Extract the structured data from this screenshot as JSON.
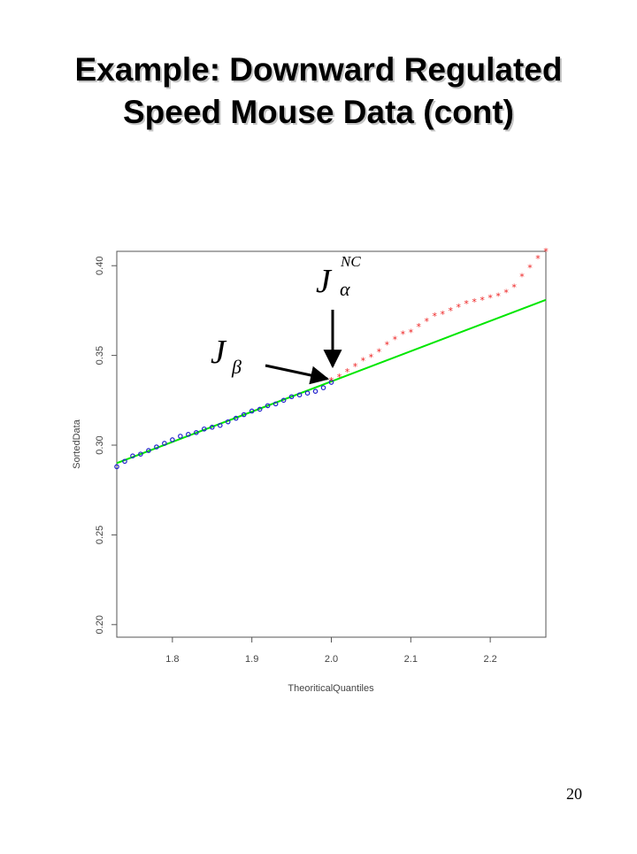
{
  "slide": {
    "title_line1": "Example:  Downward Regulated",
    "title_line2": "Speed Mouse Data (cont)",
    "page_number": "20"
  },
  "annotations": {
    "j_alpha_main": "J",
    "j_alpha_sup": "NC",
    "j_alpha_sub": "α",
    "j_beta_main": "J",
    "j_beta_sub": "β"
  },
  "chart_data": {
    "type": "scatter",
    "title": "",
    "xlabel": "TheoriticalQuantiles",
    "ylabel": "SortedData",
    "xlim": [
      1.73,
      2.27
    ],
    "ylim": [
      0.193,
      0.408
    ],
    "x_ticks": [
      1.8,
      1.9,
      2.0,
      2.1,
      2.2
    ],
    "x_tick_labels": [
      "1.8",
      "1.9",
      "2.0",
      "2.1",
      "2.2"
    ],
    "y_ticks": [
      0.2,
      0.25,
      0.3,
      0.35,
      0.4
    ],
    "y_tick_labels": [
      "0.20",
      "0.25",
      "0.30",
      "0.35",
      "0.40"
    ],
    "grid": false,
    "colors": {
      "blue": "#2222cc",
      "red": "#ee2222",
      "green": "#00e600",
      "axis": "#555555"
    },
    "series": [
      {
        "color": "#2222cc",
        "marker": "o",
        "x": [
          1.73,
          1.74,
          1.75,
          1.76,
          1.77,
          1.78,
          1.79,
          1.8,
          1.81,
          1.82,
          1.83,
          1.84,
          1.85,
          1.86,
          1.87,
          1.88,
          1.89,
          1.9,
          1.91,
          1.92,
          1.93,
          1.94,
          1.95,
          1.96,
          1.97,
          1.98,
          1.99,
          2.0
        ],
        "y": [
          0.288,
          0.291,
          0.294,
          0.295,
          0.297,
          0.299,
          0.301,
          0.303,
          0.305,
          0.306,
          0.307,
          0.309,
          0.31,
          0.311,
          0.313,
          0.315,
          0.317,
          0.319,
          0.32,
          0.322,
          0.323,
          0.325,
          0.327,
          0.328,
          0.329,
          0.33,
          0.332,
          0.335
        ]
      },
      {
        "color": "#ee2222",
        "marker": "*",
        "x": [
          2.0,
          2.01,
          2.02,
          2.03,
          2.04,
          2.05,
          2.06,
          2.07,
          2.08,
          2.09,
          2.1,
          2.11,
          2.12,
          2.13,
          2.14,
          2.15,
          2.16,
          2.17,
          2.18,
          2.19,
          2.2,
          2.21,
          2.22,
          2.23,
          2.24,
          2.25,
          2.26,
          2.27
        ],
        "y": [
          0.336,
          0.338,
          0.341,
          0.344,
          0.347,
          0.349,
          0.352,
          0.356,
          0.359,
          0.362,
          0.363,
          0.366,
          0.369,
          0.372,
          0.373,
          0.375,
          0.377,
          0.379,
          0.38,
          0.381,
          0.382,
          0.383,
          0.385,
          0.388,
          0.394,
          0.399,
          0.404,
          0.408
        ]
      }
    ],
    "fit_line": {
      "color": "#00e600",
      "x": [
        1.73,
        2.27
      ],
      "y": [
        0.29,
        0.381
      ]
    }
  }
}
